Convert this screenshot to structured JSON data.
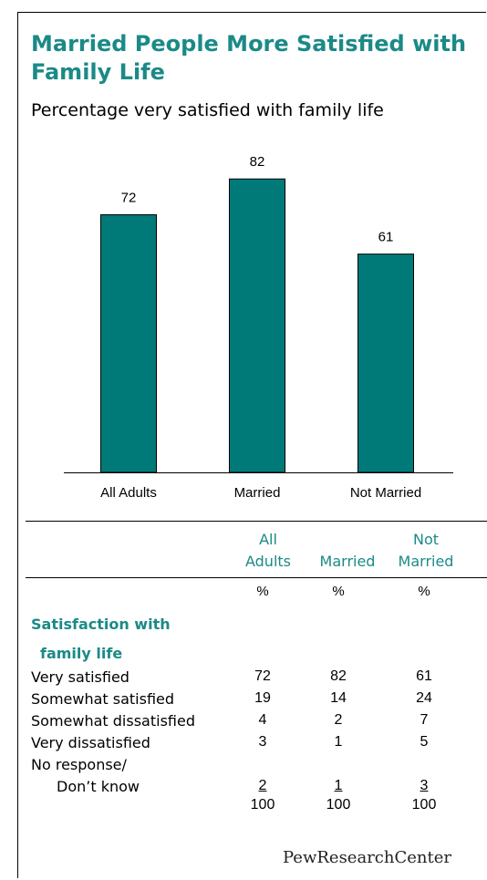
{
  "title": "Married People More Satisfied with Family Life",
  "subtitle": "Percentage very satisfied with family life",
  "colors": {
    "bar": "#007a78",
    "accent": "#1b8a87"
  },
  "chart_data": {
    "type": "bar",
    "categories": [
      "All Adults",
      "Married",
      "Not Married"
    ],
    "values": [
      72,
      82,
      61
    ],
    "title": "Married People More Satisfied with Family Life",
    "xlabel": "",
    "ylabel": "",
    "ylim": [
      0,
      100
    ],
    "grid": false,
    "legend": "none"
  },
  "table": {
    "headers": [
      {
        "line1": "All",
        "line2": "Adults"
      },
      {
        "line1": "",
        "line2": "Married"
      },
      {
        "line1": "Not",
        "line2": "Married"
      }
    ],
    "units": [
      "%",
      "%",
      "%"
    ],
    "section_title_line1": "Satisfaction with",
    "section_title_line2": "family life",
    "rows": [
      {
        "label": "Very satisfied",
        "values": [
          "72",
          "82",
          "61"
        ]
      },
      {
        "label": "Somewhat satisfied",
        "values": [
          "19",
          "14",
          "24"
        ]
      },
      {
        "label": "Somewhat dissatisfied",
        "values": [
          "4",
          "2",
          "7"
        ]
      },
      {
        "label": "Very dissatisfied",
        "values": [
          "3",
          "1",
          "5"
        ]
      },
      {
        "label": "No response/",
        "label2": "Don’t know",
        "values": [
          "2",
          "1",
          "3"
        ]
      }
    ],
    "totals": [
      "100",
      "100",
      "100"
    ]
  },
  "brand": {
    "part1": "PewResearch",
    "part2": "Center"
  }
}
